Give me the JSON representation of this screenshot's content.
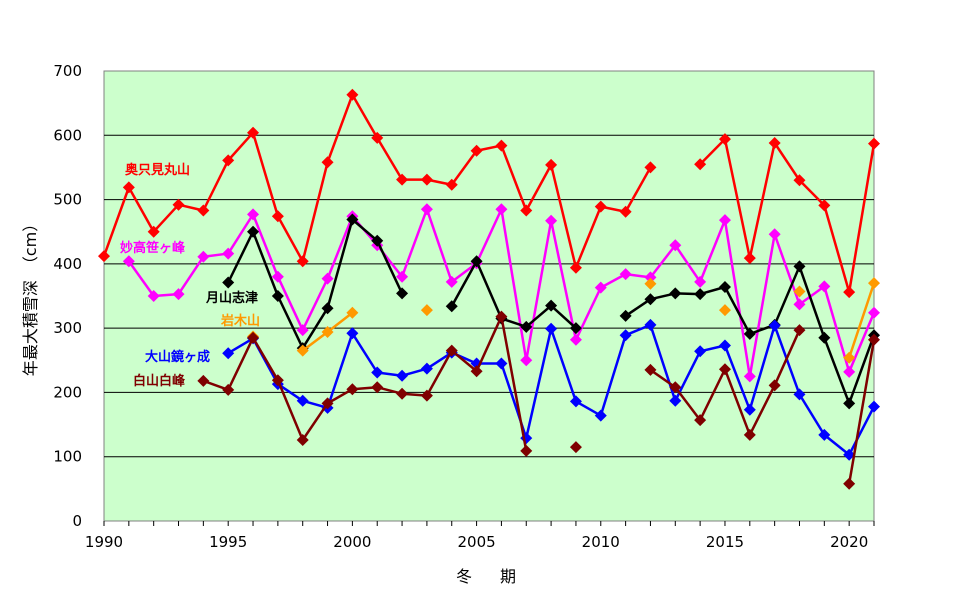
{
  "chart_data": {
    "type": "line",
    "xlabel": "冬　期",
    "ylabel": "年最大積雪深　（cm）",
    "xlim": [
      1990,
      2021
    ],
    "ylim": [
      0,
      700
    ],
    "xticks": [
      1990,
      1995,
      2000,
      2005,
      2010,
      2015,
      2020
    ],
    "yticks": [
      0,
      100,
      200,
      300,
      400,
      500,
      600,
      700
    ],
    "grid": "horizontal",
    "background_color": "#ccffcc",
    "series": [
      {
        "name": "奥只見丸山",
        "color": "#ff0000",
        "x": [
          1990,
          1991,
          1992,
          1993,
          1994,
          1995,
          1996,
          1997,
          1998,
          1999,
          2000,
          2001,
          2002,
          2003,
          2004,
          2005,
          2006,
          2007,
          2008,
          2009,
          2010,
          2011,
          2012,
          2013,
          2014,
          2015,
          2016,
          2017,
          2018,
          2019,
          2020,
          2021
        ],
        "y": [
          412,
          519,
          450,
          492,
          483,
          561,
          604,
          474,
          404,
          558,
          663,
          596,
          531,
          531,
          523,
          576,
          584,
          483,
          554,
          394,
          489,
          481,
          550,
          null,
          555,
          594,
          409,
          588,
          530,
          491,
          356,
          587
        ]
      },
      {
        "name": "妙高笹ヶ峰",
        "color": "#ff00ff",
        "x": [
          1991,
          1992,
          1993,
          1994,
          1995,
          1996,
          1997,
          1998,
          1999,
          2000,
          2001,
          2002,
          2003,
          2004,
          2005,
          2006,
          2007,
          2008,
          2009,
          2010,
          2011,
          2012,
          2013,
          2014,
          2015,
          2016,
          2017,
          2018,
          2019,
          2020,
          2021
        ],
        "y": [
          404,
          350,
          353,
          411,
          416,
          477,
          380,
          297,
          377,
          474,
          429,
          380,
          485,
          372,
          401,
          485,
          250,
          467,
          282,
          363,
          384,
          379,
          429,
          372,
          468,
          225,
          446,
          337,
          365,
          232,
          324
        ]
      },
      {
        "name": "月山志津",
        "color": "#000000",
        "x": [
          1995,
          1996,
          1997,
          1998,
          1999,
          2000,
          2001,
          2002,
          2003,
          2004,
          2005,
          2006,
          2007,
          2008,
          2009,
          2010,
          2011,
          2012,
          2013,
          2014,
          2015,
          2016,
          2017,
          2018,
          2019,
          2020,
          2021
        ],
        "y": [
          371,
          450,
          350,
          269,
          331,
          469,
          436,
          354,
          null,
          334,
          404,
          315,
          302,
          335,
          300,
          null,
          319,
          345,
          354,
          353,
          364,
          291,
          305,
          396,
          285,
          183,
          289
        ]
      },
      {
        "name": "岩木山",
        "color": "#ff9900",
        "x": [
          1996,
          1998,
          1999,
          2000,
          2003,
          2012,
          2015,
          2018,
          2020,
          2021
        ],
        "y": [
          287,
          265,
          294,
          324,
          328,
          369,
          328,
          357,
          254,
          370
        ],
        "segments": [
          [
            1998,
            1999,
            2000
          ],
          [
            2020,
            2021
          ]
        ]
      },
      {
        "name": "大山鏡ヶ成",
        "color": "#0000ff",
        "x": [
          1995,
          1996,
          1997,
          1998,
          1999,
          2000,
          2001,
          2002,
          2003,
          2004,
          2005,
          2006,
          2007,
          2008,
          2009,
          2010,
          2011,
          2012,
          2013,
          2014,
          2015,
          2016,
          2017,
          2018,
          2019,
          2020,
          2021
        ],
        "y": [
          261,
          284,
          213,
          187,
          176,
          292,
          231,
          226,
          237,
          262,
          245,
          245,
          129,
          299,
          186,
          164,
          289,
          305,
          187,
          264,
          273,
          173,
          304,
          197,
          134,
          103,
          178
        ]
      },
      {
        "name": "白山白峰",
        "color": "#7f0000",
        "x": [
          1994,
          1995,
          1996,
          1997,
          1998,
          1999,
          2000,
          2001,
          2002,
          2003,
          2004,
          2005,
          2006,
          2007,
          2009,
          2012,
          2013,
          2014,
          2015,
          2016,
          2017,
          2018,
          2020,
          2021
        ],
        "y": [
          218,
          204,
          285,
          219,
          126,
          183,
          205,
          208,
          198,
          195,
          265,
          233,
          318,
          109,
          115,
          235,
          208,
          157,
          236,
          134,
          211,
          297,
          58,
          282
        ],
        "segments": [
          [
            1994,
            1995,
            1996,
            1997,
            1998,
            1999,
            2000,
            2001,
            2002,
            2003,
            2004,
            2005,
            2006,
            2007
          ],
          [
            2012,
            2013,
            2014,
            2015,
            2016,
            2017,
            2018
          ],
          [
            2020,
            2021
          ]
        ]
      }
    ],
    "labels": [
      {
        "series": 0,
        "text": "奥只見丸山"
      },
      {
        "series": 1,
        "text": "妙高笹ヶ峰"
      },
      {
        "series": 2,
        "text": "月山志津"
      },
      {
        "series": 3,
        "text": "岩木山"
      },
      {
        "series": 4,
        "text": "大山鏡ヶ成"
      },
      {
        "series": 5,
        "text": "白山白峰"
      }
    ]
  }
}
